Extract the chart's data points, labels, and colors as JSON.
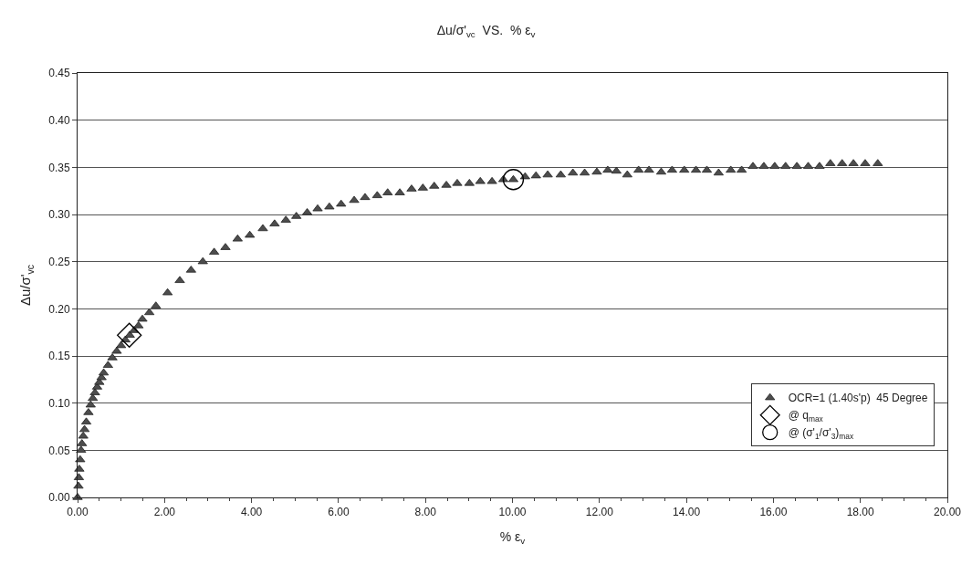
{
  "chart_data": {
    "type": "scatter",
    "title": "Δu/σ'$_{vc}$  VS.  % ε$_{v}$",
    "xlabel": "% ε$_{v}$",
    "ylabel": "Δu/σ'$_{vc}$",
    "xlim": [
      0,
      20
    ],
    "ylim": [
      0,
      0.45
    ],
    "xticks": [
      {
        "value": 0,
        "label": "0.00"
      },
      {
        "value": 2,
        "label": "2.00"
      },
      {
        "value": 4,
        "label": "4.00"
      },
      {
        "value": 6,
        "label": "6.00"
      },
      {
        "value": 8,
        "label": "8.00"
      },
      {
        "value": 10,
        "label": "10.00"
      },
      {
        "value": 12,
        "label": "12.00"
      },
      {
        "value": 14,
        "label": "14.00"
      },
      {
        "value": 16,
        "label": "16.00"
      },
      {
        "value": 18,
        "label": "18.00"
      },
      {
        "value": 20,
        "label": "20.00"
      }
    ],
    "yticks": [
      {
        "value": 0,
        "label": "0.00"
      },
      {
        "value": 0.05,
        "label": "0.05"
      },
      {
        "value": 0.1,
        "label": "0.10"
      },
      {
        "value": 0.15,
        "label": "0.15"
      },
      {
        "value": 0.2,
        "label": "0.20"
      },
      {
        "value": 0.25,
        "label": "0.25"
      },
      {
        "value": 0.3,
        "label": "0.30"
      },
      {
        "value": 0.35,
        "label": "0.35"
      },
      {
        "value": 0.4,
        "label": "0.40"
      },
      {
        "value": 0.45,
        "label": "0.45"
      }
    ],
    "grid": "y",
    "legend": "bottom right",
    "series": [
      {
        "name": "OCR=1 (1.40s'p)  45 Degree",
        "color": "#4d4d4d",
        "marker": "triangle",
        "x": [
          0,
          0.02,
          0.03,
          0.04,
          0.06,
          0.08,
          0.1,
          0.13,
          0.16,
          0.2,
          0.25,
          0.3,
          0.35,
          0.4,
          0.45,
          0.5,
          0.55,
          0.6,
          0.7,
          0.8,
          0.9,
          1.0,
          1.1,
          1.2,
          1.3,
          1.4,
          1.49,
          1.65,
          1.8,
          2.07,
          2.35,
          2.61,
          2.88,
          3.14,
          3.4,
          3.68,
          3.96,
          4.26,
          4.53,
          4.79,
          5.03,
          5.28,
          5.52,
          5.79,
          6.06,
          6.36,
          6.61,
          6.89,
          7.13,
          7.41,
          7.68,
          7.94,
          8.2,
          8.48,
          8.73,
          9.01,
          9.26,
          9.53,
          9.79,
          10.02,
          10.29,
          10.54,
          10.81,
          11.11,
          11.39,
          11.66,
          11.94,
          12.19,
          12.39,
          12.64,
          12.9,
          13.14,
          13.42,
          13.67,
          13.95,
          14.22,
          14.47,
          14.74,
          15.02,
          15.27,
          15.53,
          15.78,
          16.03,
          16.28,
          16.54,
          16.8,
          17.06,
          17.31,
          17.58,
          17.84,
          18.11,
          18.4
        ],
        "values": [
          0,
          0.012,
          0.021,
          0.03,
          0.04,
          0.05,
          0.057,
          0.065,
          0.072,
          0.08,
          0.09,
          0.098,
          0.105,
          0.111,
          0.117,
          0.122,
          0.127,
          0.132,
          0.14,
          0.148,
          0.155,
          0.161,
          0.167,
          0.172,
          0.177,
          0.182,
          0.189,
          0.196,
          0.203,
          0.217,
          0.23,
          0.241,
          0.25,
          0.26,
          0.265,
          0.274,
          0.278,
          0.285,
          0.29,
          0.294,
          0.298,
          0.302,
          0.306,
          0.308,
          0.311,
          0.315,
          0.318,
          0.32,
          0.323,
          0.323,
          0.327,
          0.328,
          0.33,
          0.331,
          0.333,
          0.333,
          0.335,
          0.335,
          0.337,
          0.337,
          0.34,
          0.341,
          0.342,
          0.342,
          0.344,
          0.344,
          0.345,
          0.347,
          0.346,
          0.342,
          0.347,
          0.347,
          0.345,
          0.347,
          0.347,
          0.347,
          0.347,
          0.344,
          0.347,
          0.347,
          0.351,
          0.351,
          0.351,
          0.351,
          0.351,
          0.351,
          0.351,
          0.354,
          0.354,
          0.354,
          0.354,
          0.354
        ]
      },
      {
        "name": "@ q$_{max}$",
        "color": "#000000",
        "marker": "diamond",
        "x": [
          1.19
        ],
        "values": [
          0.172
        ]
      },
      {
        "name": "@ (σ'$_{1}$/σ'$_{3}$)$_{max}$",
        "color": "#000000",
        "marker": "circle",
        "x": [
          10.02
        ],
        "values": [
          0.337
        ]
      }
    ]
  }
}
